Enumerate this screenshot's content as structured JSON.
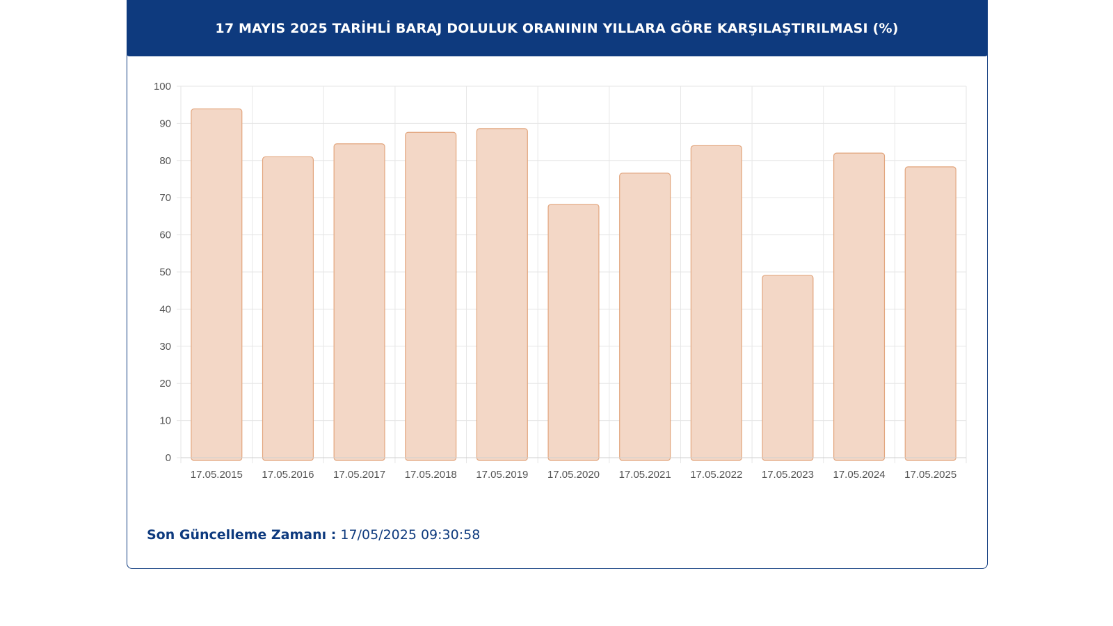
{
  "header": {
    "title": "17 MAYIS 2025 TARİHLİ BARAJ DOLULUK ORANININ YILLARA GÖRE KARŞILAŞTIRILMASI (%)"
  },
  "footer": {
    "label": "Son Güncelleme Zamanı :",
    "value": "17/05/2025 09:30:58"
  },
  "colors": {
    "header_bg": "#0e3a7e",
    "bar_fill": "#f3d7c6",
    "bar_stroke": "#e2a57d",
    "grid": "#e6e6e6"
  },
  "chart_data": {
    "type": "bar",
    "categories": [
      "17.05.2015",
      "17.05.2016",
      "17.05.2017",
      "17.05.2018",
      "17.05.2019",
      "17.05.2020",
      "17.05.2021",
      "17.05.2022",
      "17.05.2023",
      "17.05.2024",
      "17.05.2025"
    ],
    "values": [
      93.9,
      81.0,
      84.5,
      87.6,
      88.6,
      68.2,
      76.6,
      84.0,
      49.1,
      82.0,
      78.3
    ],
    "ylim": [
      0,
      100
    ],
    "yticks": [
      0,
      10,
      20,
      30,
      40,
      50,
      60,
      70,
      80,
      90,
      100
    ],
    "grid": true,
    "legend": "none"
  }
}
